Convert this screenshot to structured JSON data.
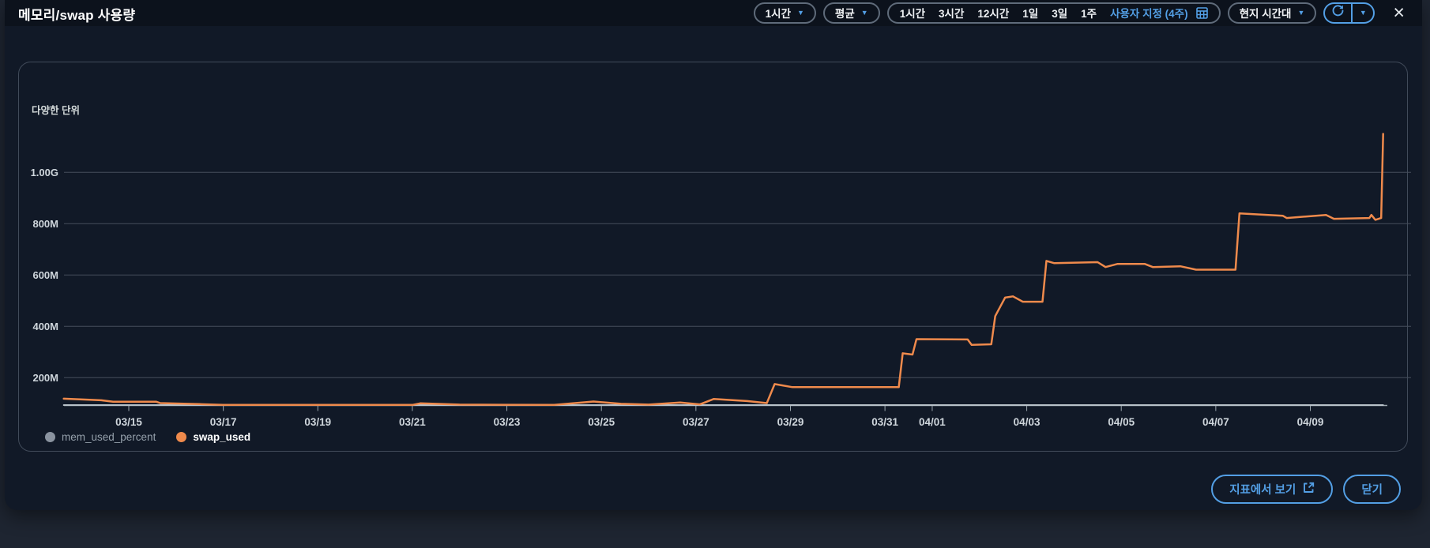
{
  "header": {
    "title": "메모리/swap 사용량",
    "period_dropdown": {
      "label": "1시간"
    },
    "statistic_dropdown": {
      "label": "평균"
    },
    "range_group": {
      "items": [
        "1시간",
        "3시간",
        "12시간",
        "1일",
        "3일",
        "1주"
      ],
      "custom_label": "사용자 지정 (4주)"
    },
    "timezone_dropdown": {
      "label": "현지 시간대"
    }
  },
  "footer": {
    "view_in_metrics_label": "지표에서 보기",
    "close_label": "닫기"
  },
  "colors": {
    "accent_blue": "#539fe5",
    "swap_orange": "#ef8a4c",
    "mem_gray": "#8a939f",
    "grid": "#454e5c",
    "axis": "#9aa5ad",
    "tick_text": "#cfd6dc"
  },
  "chart_data": {
    "type": "line",
    "title": "메모리/swap 사용량",
    "y_axis_label": "다양한 단위",
    "x_range": [
      "03/13 15:00",
      "04/10 15:00"
    ],
    "y_ticks": [
      {
        "label": "200M",
        "value": 200
      },
      {
        "label": "400M",
        "value": 400
      },
      {
        "label": "600M",
        "value": 600
      },
      {
        "label": "800M",
        "value": 800
      },
      {
        "label": "1.00G",
        "value": 1000
      }
    ],
    "x_ticks": [
      "03/15",
      "03/17",
      "03/19",
      "03/21",
      "03/23",
      "03/25",
      "03/27",
      "03/29",
      "03/31",
      "04/01",
      "04/03",
      "04/05",
      "04/07",
      "04/09"
    ],
    "grid": true,
    "legend_position": "bottom-left",
    "series": [
      {
        "name": "mem_used_percent",
        "unit": "percent",
        "color": "#b9c2c9",
        "legend_color": "#8a939f",
        "highlighted": false,
        "points": [
          [
            "03/13 15:00",
            32
          ],
          [
            "04/10 13:00",
            32
          ]
        ]
      },
      {
        "name": "swap_used",
        "unit": "megabytes",
        "color": "#ef8a4c",
        "legend_color": "#ef8a4c",
        "highlighted": true,
        "points": [
          [
            "03/13 15:00",
            118
          ],
          [
            "03/14 10:00",
            112
          ],
          [
            "03/14 16:00",
            106
          ],
          [
            "03/15 14:00",
            106
          ],
          [
            "03/15 16:00",
            101
          ],
          [
            "03/16 12:00",
            97
          ],
          [
            "03/17 00:00",
            94
          ],
          [
            "03/21 00:00",
            94
          ],
          [
            "03/21 04:00",
            100
          ],
          [
            "03/22 00:00",
            95
          ],
          [
            "03/24 00:00",
            94
          ],
          [
            "03/24 20:00",
            107
          ],
          [
            "03/25 10:00",
            98
          ],
          [
            "03/26 00:00",
            95
          ],
          [
            "03/26 16:00",
            103
          ],
          [
            "03/27 02:00",
            96
          ],
          [
            "03/27 09:00",
            117
          ],
          [
            "03/28 02:00",
            109
          ],
          [
            "03/28 12:00",
            101
          ],
          [
            "03/28 16:00",
            175
          ],
          [
            "03/29 01:00",
            163
          ],
          [
            "03/31 07:00",
            163
          ],
          [
            "03/31 09:00",
            295
          ],
          [
            "03/31 14:00",
            290
          ],
          [
            "03/31 16:00",
            350
          ],
          [
            "04/01 18:00",
            349
          ],
          [
            "04/01 20:00",
            328
          ],
          [
            "04/02 06:00",
            330
          ],
          [
            "04/02 08:00",
            440
          ],
          [
            "04/02 13:00",
            512
          ],
          [
            "04/02 17:00",
            517
          ],
          [
            "04/02 22:00",
            496
          ],
          [
            "04/03 08:00",
            496
          ],
          [
            "04/03 10:00",
            655
          ],
          [
            "04/03 14:00",
            646
          ],
          [
            "04/04 12:00",
            650
          ],
          [
            "04/04 16:00",
            631
          ],
          [
            "04/04 22:00",
            643
          ],
          [
            "04/05 12:00",
            643
          ],
          [
            "04/05 16:00",
            631
          ],
          [
            "04/06 06:00",
            634
          ],
          [
            "04/06 14:00",
            621
          ],
          [
            "04/07 10:00",
            621
          ],
          [
            "04/07 12:00",
            840
          ],
          [
            "04/08 10:00",
            831
          ],
          [
            "04/08 12:00",
            822
          ],
          [
            "04/09 08:00",
            834
          ],
          [
            "04/09 12:00",
            819
          ],
          [
            "04/10 06:00",
            822
          ],
          [
            "04/10 07:00",
            834
          ],
          [
            "04/10 09:00",
            815
          ],
          [
            "04/10 12:00",
            822
          ],
          [
            "04/10 13:00",
            1150
          ]
        ]
      }
    ]
  }
}
